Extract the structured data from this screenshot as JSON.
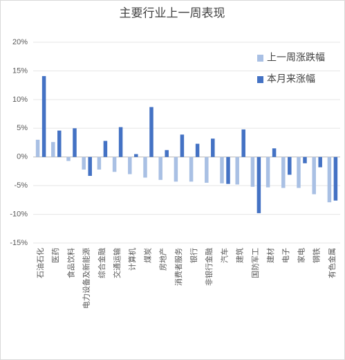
{
  "chart_data": {
    "type": "bar",
    "title": "主要行业上一周表现",
    "categories": [
      "石油石化",
      "医药",
      "食品饮料",
      "电力设备及新能源",
      "综合金融",
      "交通运输",
      "计算机",
      "煤炭",
      "房地产",
      "消费者服务",
      "银行",
      "非银行金融",
      "汽车",
      "建筑",
      "国防军工",
      "建材",
      "电子",
      "家电",
      "钢铁",
      "有色金属"
    ],
    "series": [
      {
        "name": "上一周涨跌幅",
        "color": "#a9c0e4",
        "values": [
          3.0,
          2.6,
          -0.7,
          -2.2,
          -2.2,
          -2.6,
          -3.0,
          -3.6,
          -4.0,
          -4.3,
          -4.3,
          -4.5,
          -4.6,
          -4.8,
          -5.2,
          -5.3,
          -5.4,
          -5.4,
          -6.5,
          -7.9
        ]
      },
      {
        "name": "本月来涨幅",
        "color": "#4472c4",
        "values": [
          14.1,
          4.6,
          5.0,
          -3.3,
          2.8,
          5.2,
          0.5,
          8.7,
          1.2,
          3.9,
          2.3,
          3.2,
          -4.7,
          4.8,
          -9.8,
          1.5,
          -3.1,
          -1.1,
          -1.8,
          -7.6
        ]
      }
    ],
    "ylim": [
      -15,
      20
    ],
    "yticks": [
      {
        "value": -15,
        "label": "-15%"
      },
      {
        "value": -10,
        "label": "-10%"
      },
      {
        "value": -5,
        "label": "-5%"
      },
      {
        "value": 0,
        "label": "0%"
      },
      {
        "value": 5,
        "label": "5%"
      },
      {
        "value": 10,
        "label": "10%"
      },
      {
        "value": 15,
        "label": "15%"
      },
      {
        "value": 20,
        "label": "20%"
      }
    ],
    "grid": true,
    "legend": "upper right"
  }
}
